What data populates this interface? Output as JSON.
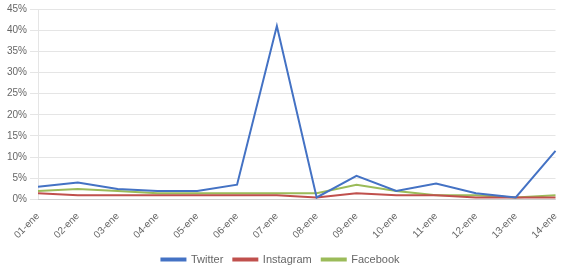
{
  "chart_data": {
    "type": "line",
    "categories": [
      "01-ene",
      "02-ene",
      "03-ene",
      "04-ene",
      "05-ene",
      "06-ene",
      "07-ene",
      "08-ene",
      "09-ene",
      "10-ene",
      "11-ene",
      "12-ene",
      "13-ene",
      "14-ene"
    ],
    "series": [
      {
        "name": "Twitter",
        "color": "#4472C4",
        "values": [
          0.03,
          0.04,
          0.025,
          0.02,
          0.02,
          0.035,
          0.41,
          0.005,
          0.056,
          0.02,
          0.038,
          0.015,
          0.005,
          0.115
        ]
      },
      {
        "name": "Instagram",
        "color": "#C0504D",
        "values": [
          0.015,
          0.01,
          0.01,
          0.01,
          0.01,
          0.01,
          0.01,
          0.005,
          0.015,
          0.01,
          0.01,
          0.005,
          0.005,
          0.005
        ]
      },
      {
        "name": "Facebook",
        "color": "#9BBB59",
        "values": [
          0.02,
          0.025,
          0.02,
          0.015,
          0.015,
          0.015,
          0.015,
          0.015,
          0.035,
          0.02,
          0.01,
          0.01,
          0.005,
          0.01
        ]
      }
    ],
    "ylim": [
      0.0,
      0.45
    ],
    "yticks": [
      {
        "value": 0.0,
        "label": "0%"
      },
      {
        "value": 0.05,
        "label": "5%"
      },
      {
        "value": 0.1,
        "label": "10%"
      },
      {
        "value": 0.15,
        "label": "15%"
      },
      {
        "value": 0.2,
        "label": "20%"
      },
      {
        "value": 0.25,
        "label": "25%"
      },
      {
        "value": 0.3,
        "label": "30%"
      },
      {
        "value": 0.35,
        "label": "35%"
      },
      {
        "value": 0.4,
        "label": "40%"
      },
      {
        "value": 0.45,
        "label": "45%"
      }
    ],
    "grid": true,
    "legend": "bottom"
  }
}
